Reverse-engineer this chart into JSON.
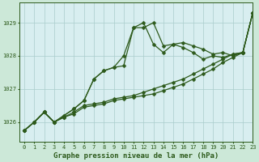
{
  "title": "Graphe pression niveau de la mer (hPa)",
  "bg_color": "#cce8d8",
  "plot_bg_color": "#d8eef0",
  "grid_color": "#aacccc",
  "line_color": "#2d5a1b",
  "marker_color": "#2d5a1b",
  "xlim": [
    -0.5,
    23
  ],
  "ylim": [
    1025.4,
    1029.6
  ],
  "yticks": [
    1026,
    1027,
    1028,
    1029
  ],
  "xticks": [
    0,
    1,
    2,
    3,
    4,
    5,
    6,
    7,
    8,
    9,
    10,
    11,
    12,
    13,
    14,
    15,
    16,
    17,
    18,
    19,
    20,
    21,
    22,
    23
  ],
  "series": [
    [
      1025.75,
      1026.0,
      1026.3,
      1026.0,
      1026.2,
      1026.4,
      1026.65,
      1027.3,
      1027.55,
      1027.65,
      1028.0,
      1028.85,
      1029.0,
      1028.35,
      1028.1,
      1028.35,
      1028.25,
      1028.1,
      1027.9,
      1028.0,
      1027.95,
      1028.05,
      1028.1,
      1029.3
    ],
    [
      1025.75,
      1026.0,
      1026.3,
      1026.0,
      1026.2,
      1026.4,
      1026.65,
      1027.3,
      1027.55,
      1027.65,
      1027.7,
      1028.85,
      1028.85,
      1029.0,
      1028.3,
      1028.35,
      1028.4,
      1028.3,
      1028.2,
      1028.05,
      1028.1,
      1028.0,
      1028.1,
      1029.3
    ],
    [
      1025.75,
      1026.0,
      1026.3,
      1026.0,
      1026.15,
      1026.3,
      1026.5,
      1026.55,
      1026.6,
      1026.7,
      1026.75,
      1026.8,
      1026.9,
      1027.0,
      1027.1,
      1027.2,
      1027.3,
      1027.45,
      1027.6,
      1027.75,
      1027.9,
      1028.05,
      1028.1,
      1029.3
    ],
    [
      1025.75,
      1026.0,
      1026.3,
      1026.0,
      1026.15,
      1026.25,
      1026.45,
      1026.5,
      1026.55,
      1026.65,
      1026.7,
      1026.75,
      1026.8,
      1026.85,
      1026.95,
      1027.05,
      1027.15,
      1027.3,
      1027.45,
      1027.6,
      1027.8,
      1027.95,
      1028.1,
      1029.3
    ]
  ],
  "has_markers": [
    true,
    true,
    true,
    true
  ],
  "marker_size": 2.5,
  "linewidth": 0.9,
  "title_fontsize": 6.5,
  "tick_fontsize": 5.0,
  "tick_color": "#2d5a1b",
  "axis_color": "#2d5a1b"
}
